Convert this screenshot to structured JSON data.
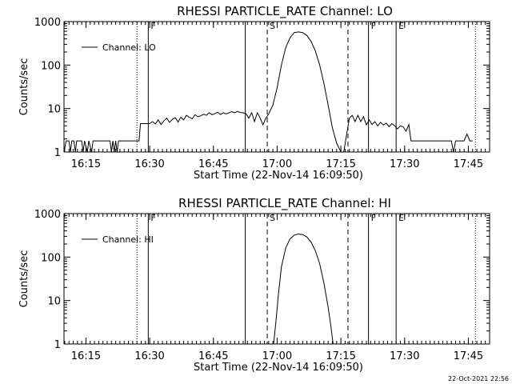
{
  "chart_data": [
    {
      "type": "line",
      "title": "RHESSI PARTICLE_RATE Channel: LO",
      "xlabel": "Start Time (22-Nov-14 16:09:50)",
      "ylabel": "Counts/sec",
      "x_ticks": [
        "16:15",
        "16:30",
        "16:45",
        "17:00",
        "17:15",
        "17:30",
        "17:45"
      ],
      "y_ticks": [
        "1",
        "10",
        "100",
        "1000"
      ],
      "xlim": [
        "16:09:50",
        "17:50:00"
      ],
      "ylim": [
        1,
        1000
      ],
      "y_scale": "log",
      "legend": {
        "label": "Channel: LO",
        "position": "top-left"
      },
      "markers": [
        {
          "time": "16:27:00",
          "label": "",
          "style": "dotted"
        },
        {
          "time": "16:29:40",
          "label": "F",
          "style": "solid"
        },
        {
          "time": "16:52:30",
          "label": "",
          "style": "solid"
        },
        {
          "time": "16:57:40",
          "label": "S",
          "style": "dashed"
        },
        {
          "time": "17:16:40",
          "label": "",
          "style": "dashed"
        },
        {
          "time": "17:21:30",
          "label": "F",
          "style": "solid"
        },
        {
          "time": "17:28:00",
          "label": "E",
          "style": "solid"
        },
        {
          "time": "17:46:40",
          "label": "",
          "style": "dotted"
        }
      ],
      "series": [
        {
          "name": "Channel: LO",
          "points": [
            [
              "16:09:50",
              1.0
            ],
            [
              "16:10:20",
              1.8
            ],
            [
              "16:11:00",
              1.8
            ],
            [
              "16:11:20",
              1.0
            ],
            [
              "16:11:40",
              1.8
            ],
            [
              "16:12:10",
              1.8
            ],
            [
              "16:12:30",
              1.0
            ],
            [
              "16:12:50",
              1.8
            ],
            [
              "16:13:30",
              1.8
            ],
            [
              "16:14:00",
              1.8
            ],
            [
              "16:14:20",
              1.0
            ],
            [
              "16:14:40",
              1.8
            ],
            [
              "16:15:20",
              1.0
            ],
            [
              "16:15:40",
              1.8
            ],
            [
              "16:16:20",
              1.0
            ],
            [
              "16:16:40",
              1.8
            ],
            [
              "16:17:40",
              1.8
            ],
            [
              "16:18:40",
              1.8
            ],
            [
              "16:19:40",
              1.8
            ],
            [
              "16:20:40",
              1.8
            ],
            [
              "16:21:00",
              1.0
            ],
            [
              "16:21:20",
              1.8
            ],
            [
              "16:21:40",
              1.0
            ],
            [
              "16:22:00",
              1.8
            ],
            [
              "16:22:20",
              1.0
            ],
            [
              "16:22:40",
              1.8
            ],
            [
              "16:23:40",
              1.8
            ],
            [
              "16:24:40",
              1.8
            ],
            [
              "16:25:40",
              1.8
            ],
            [
              "16:26:40",
              1.8
            ],
            [
              "16:27:30",
              1.8
            ],
            [
              "16:27:50",
              4.5
            ],
            [
              "16:30:00",
              4.5
            ],
            [
              "16:30:40",
              5.0
            ],
            [
              "16:31:20",
              4.4
            ],
            [
              "16:32:00",
              5.5
            ],
            [
              "16:32:40",
              4.3
            ],
            [
              "16:33:20",
              5.2
            ],
            [
              "16:34:00",
              6.0
            ],
            [
              "16:34:40",
              4.8
            ],
            [
              "16:35:20",
              5.6
            ],
            [
              "16:36:00",
              6.2
            ],
            [
              "16:36:40",
              4.9
            ],
            [
              "16:37:20",
              6.3
            ],
            [
              "16:38:00",
              5.5
            ],
            [
              "16:38:40",
              7.0
            ],
            [
              "16:39:20",
              6.3
            ],
            [
              "16:40:00",
              5.8
            ],
            [
              "16:40:40",
              7.2
            ],
            [
              "16:41:20",
              6.5
            ],
            [
              "16:42:00",
              6.8
            ],
            [
              "16:42:40",
              7.4
            ],
            [
              "16:43:20",
              7.0
            ],
            [
              "16:44:00",
              8.0
            ],
            [
              "16:44:40",
              7.2
            ],
            [
              "16:45:20",
              7.6
            ],
            [
              "16:46:00",
              8.2
            ],
            [
              "16:46:40",
              7.3
            ],
            [
              "16:47:20",
              8.0
            ],
            [
              "16:48:00",
              7.5
            ],
            [
              "16:48:40",
              8.0
            ],
            [
              "16:49:20",
              8.5
            ],
            [
              "16:50:00",
              8.0
            ],
            [
              "16:50:40",
              8.6
            ],
            [
              "16:51:20",
              8.1
            ],
            [
              "16:52:00",
              8.0
            ],
            [
              "16:52:40",
              7.6
            ],
            [
              "16:53:20",
              6.0
            ],
            [
              "16:54:00",
              8.0
            ],
            [
              "16:54:40",
              5.0
            ],
            [
              "16:55:20",
              8.0
            ],
            [
              "16:56:00",
              6.0
            ],
            [
              "16:56:40",
              4.2
            ],
            [
              "16:57:20",
              6.0
            ],
            [
              "16:58:00",
              7.5
            ],
            [
              "16:59:00",
              12
            ],
            [
              "17:00:00",
              30
            ],
            [
              "17:01:00",
              100
            ],
            [
              "17:02:00",
              250
            ],
            [
              "17:03:00",
              420
            ],
            [
              "17:04:00",
              560
            ],
            [
              "17:05:00",
              580
            ],
            [
              "17:06:00",
              560
            ],
            [
              "17:07:00",
              480
            ],
            [
              "17:08:00",
              350
            ],
            [
              "17:09:00",
              210
            ],
            [
              "17:10:00",
              100
            ],
            [
              "17:11:00",
              38
            ],
            [
              "17:12:00",
              12
            ],
            [
              "17:13:00",
              3.6
            ],
            [
              "17:14:00",
              1.6
            ],
            [
              "17:15:00",
              1.0
            ],
            [
              "17:15:40",
              1.0
            ],
            [
              "17:16:20",
              2.5
            ],
            [
              "17:17:00",
              6.0
            ],
            [
              "17:17:40",
              7.0
            ],
            [
              "17:18:20",
              5.0
            ],
            [
              "17:19:00",
              7.0
            ],
            [
              "17:19:40",
              5.0
            ],
            [
              "17:20:20",
              6.5
            ],
            [
              "17:21:00",
              4.2
            ],
            [
              "17:21:40",
              5.5
            ],
            [
              "17:22:20",
              4.3
            ],
            [
              "17:23:00",
              5.0
            ],
            [
              "17:23:40",
              4.0
            ],
            [
              "17:24:20",
              4.8
            ],
            [
              "17:25:00",
              4.2
            ],
            [
              "17:25:40",
              4.6
            ],
            [
              "17:26:20",
              3.8
            ],
            [
              "17:27:00",
              4.5
            ],
            [
              "17:27:40",
              4.0
            ],
            [
              "17:28:20",
              3.4
            ],
            [
              "17:29:00",
              4.0
            ],
            [
              "17:29:40",
              3.8
            ],
            [
              "17:30:20",
              3.0
            ],
            [
              "17:31:00",
              4.3
            ],
            [
              "17:31:30",
              1.8
            ],
            [
              "17:33:00",
              1.8
            ],
            [
              "17:35:00",
              1.8
            ],
            [
              "17:37:00",
              1.8
            ],
            [
              "17:39:00",
              1.8
            ],
            [
              "17:41:00",
              1.8
            ],
            [
              "17:41:30",
              1.0
            ],
            [
              "17:42:00",
              1.8
            ],
            [
              "17:44:00",
              1.8
            ],
            [
              "17:44:40",
              2.6
            ],
            [
              "17:45:20",
              1.8
            ],
            [
              "17:46:00",
              1.8
            ]
          ]
        }
      ]
    },
    {
      "type": "line",
      "title": "RHESSI PARTICLE_RATE Channel: HI",
      "xlabel": "Start Time (22-Nov-14 16:09:50)",
      "ylabel": "Counts/sec",
      "x_ticks": [
        "16:15",
        "16:30",
        "16:45",
        "17:00",
        "17:15",
        "17:30",
        "17:45"
      ],
      "y_ticks": [
        "1",
        "10",
        "100",
        "1000"
      ],
      "xlim": [
        "16:09:50",
        "17:50:00"
      ],
      "ylim": [
        1,
        1000
      ],
      "y_scale": "log",
      "legend": {
        "label": "Channel: HI",
        "position": "top-left"
      },
      "markers": [
        {
          "time": "16:27:00",
          "label": "",
          "style": "dotted"
        },
        {
          "time": "16:29:40",
          "label": "F",
          "style": "solid"
        },
        {
          "time": "16:52:30",
          "label": "",
          "style": "solid"
        },
        {
          "time": "16:57:40",
          "label": "S",
          "style": "dashed"
        },
        {
          "time": "17:16:40",
          "label": "",
          "style": "dashed"
        },
        {
          "time": "17:21:30",
          "label": "F",
          "style": "solid"
        },
        {
          "time": "17:28:00",
          "label": "E",
          "style": "solid"
        },
        {
          "time": "17:46:40",
          "label": "",
          "style": "dotted"
        }
      ],
      "series": [
        {
          "name": "Channel: HI",
          "points": [
            [
              "16:59:10",
              1.0
            ],
            [
              "16:59:40",
              3.0
            ],
            [
              "17:00:20",
              15
            ],
            [
              "17:01:00",
              60
            ],
            [
              "17:02:00",
              160
            ],
            [
              "17:03:00",
              260
            ],
            [
              "17:04:00",
              320
            ],
            [
              "17:05:00",
              340
            ],
            [
              "17:06:00",
              330
            ],
            [
              "17:07:00",
              290
            ],
            [
              "17:08:00",
              220
            ],
            [
              "17:09:00",
              140
            ],
            [
              "17:10:00",
              70
            ],
            [
              "17:11:00",
              25
            ],
            [
              "17:12:00",
              7
            ],
            [
              "17:12:40",
              2.5
            ],
            [
              "17:13:10",
              1.0
            ]
          ]
        }
      ]
    }
  ],
  "footer": {
    "timestamp": "22-Oct-2021 22:56"
  }
}
